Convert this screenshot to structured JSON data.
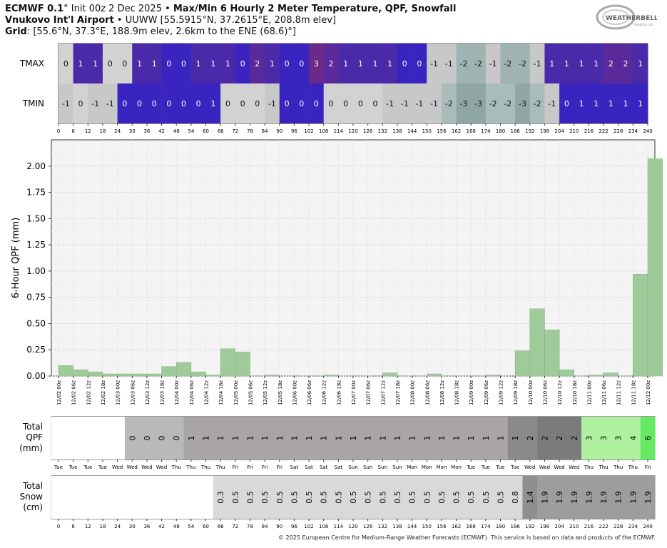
{
  "header": {
    "model": "ECMWF 0.1",
    "init_text": "° Init 00z 2 Dec 2025",
    "sep": " • ",
    "product": "Max/Min 6 Hourly 2 Meter Temperature, QPF, Snowfall",
    "station_name": "Vnukovo Int'l Airport",
    "station_info": " • UUWW [55.5915°N, 37.2615°E, 208.8m elev]",
    "grid_label": "Grid",
    "grid_info": ": [55.6°N, 37.3°E, 188.9m elev, 2.6km to the ENE (68.6)°]"
  },
  "logo": {
    "text": "WEATHERBELL",
    "sub": "Analytics LLC"
  },
  "footer": {
    "copyright": "© 2025 European Centre for Medium-Range Weather Forecasts (ECMWF). This service is based on data and products of the ECMWF."
  },
  "chart_data": [
    {
      "type": "heatmap",
      "rows": [
        "TMAX",
        "TMIN"
      ],
      "x": [
        0,
        6,
        12,
        18,
        24,
        30,
        36,
        42,
        48,
        54,
        60,
        66,
        72,
        78,
        84,
        90,
        96,
        102,
        108,
        114,
        120,
        126,
        132,
        138,
        144,
        150,
        156,
        162,
        168,
        174,
        180,
        186,
        192,
        198,
        204,
        210,
        216,
        222,
        228,
        234,
        240
      ],
      "tmax": [
        0,
        1,
        1,
        0,
        0,
        1,
        1,
        0,
        0,
        1,
        1,
        1,
        0,
        2,
        1,
        0,
        0,
        3,
        2,
        1,
        1,
        1,
        1,
        0,
        0,
        -1,
        -1,
        -2,
        -2,
        -1,
        -2,
        -2,
        -1,
        1,
        1,
        1,
        1,
        2,
        2,
        1
      ],
      "tmin": [
        -1,
        0,
        -1,
        -1,
        0,
        0,
        0,
        0,
        0,
        0,
        1,
        0,
        0,
        0,
        -1,
        0,
        0,
        0,
        0,
        0,
        0,
        0,
        -1,
        -1,
        -1,
        -1,
        -2,
        -3,
        -3,
        -2,
        -2,
        -3,
        -2,
        -1,
        0,
        1,
        1,
        1,
        1,
        1
      ]
    },
    {
      "type": "bar",
      "title": "",
      "xlabel": "",
      "ylabel": "6-Hour QPF (mm)",
      "ylim": [
        0,
        2.25
      ],
      "yticks": [
        "0.00",
        "0.25",
        "0.50",
        "0.75",
        "1.00",
        "1.25",
        "1.50",
        "1.75",
        "2.00"
      ],
      "categories": [
        "12/02 00z",
        "12/02 06z",
        "12/02 12z",
        "12/02 18z",
        "12/03 00z",
        "12/03 06z",
        "12/03 12z",
        "12/03 18z",
        "12/04 00z",
        "12/04 06z",
        "12/04 12z",
        "12/04 18z",
        "12/05 00z",
        "12/05 06z",
        "12/05 12z",
        "12/05 18z",
        "12/06 00z",
        "12/06 06z",
        "12/06 12z",
        "12/06 18z",
        "12/07 00z",
        "12/07 06z",
        "12/07 12z",
        "12/07 18z",
        "12/08 00z",
        "12/08 06z",
        "12/08 12z",
        "12/08 18z",
        "12/09 00z",
        "12/09 06z",
        "12/09 12z",
        "12/09 18z",
        "12/10 00z",
        "12/10 06z",
        "12/10 12z",
        "12/10 18z",
        "12/11 00z",
        "12/11 06z",
        "12/11 12z",
        "12/11 18z",
        "12/12 00z"
      ],
      "values": [
        0.1,
        0.06,
        0.04,
        0.02,
        0.02,
        0.02,
        0.02,
        0.09,
        0.13,
        0.04,
        0.01,
        0.26,
        0.23,
        0.0,
        0.01,
        0.0,
        0.0,
        0.0,
        0.01,
        0.0,
        0.0,
        0.0,
        0.03,
        0.0,
        0.0,
        0.02,
        0.0,
        0.0,
        0.0,
        0.01,
        0.0,
        0.24,
        0.64,
        0.44,
        0.06,
        0.0,
        0.01,
        0.03,
        0.0,
        0.97,
        2.07
      ]
    },
    {
      "type": "table",
      "title": "Total QPF (mm)",
      "days": [
        "Tue",
        "Tue",
        "Tue",
        "Tue",
        "Wed",
        "Wed",
        "Wed",
        "Wed",
        "Thu",
        "Thu",
        "Thu",
        "Thu",
        "Fri",
        "Fri",
        "Fri",
        "Fri",
        "Sat",
        "Sat",
        "Sat",
        "Sat",
        "Sun",
        "Sun",
        "Sun",
        "Sun",
        "Mon",
        "Mon",
        "Mon",
        "Mon",
        "Tue",
        "Tue",
        "Tue",
        "Tue",
        "Wed",
        "Wed",
        "Wed",
        "Wed",
        "Thu",
        "Thu",
        "Thu",
        "Thu",
        "Fri"
      ],
      "values": [
        "",
        "",
        "",
        "",
        "",
        "0",
        "0",
        "0",
        "0",
        "1",
        "1",
        "1",
        "1",
        "1",
        "1",
        "1",
        "1",
        "1",
        "1",
        "1",
        "1",
        "1",
        "1",
        "1",
        "1",
        "1",
        "1",
        "1",
        "1",
        "1",
        "1",
        "1",
        "2",
        "2",
        "2",
        "2",
        "3",
        "3",
        "3",
        "4",
        "6"
      ]
    },
    {
      "type": "table",
      "title": "Total Snow (cm)",
      "x": [
        0,
        6,
        12,
        18,
        24,
        30,
        36,
        42,
        48,
        54,
        60,
        66,
        72,
        78,
        84,
        90,
        96,
        102,
        108,
        114,
        120,
        126,
        132,
        138,
        144,
        150,
        156,
        162,
        168,
        174,
        180,
        186,
        192,
        198,
        204,
        210,
        216,
        222,
        228,
        234,
        240
      ],
      "values": [
        "",
        "",
        "",
        "",
        "",
        "",
        "",
        "",
        "",
        "",
        "",
        "0.3",
        "0.5",
        "0.5",
        "0.5",
        "0.5",
        "0.5",
        "0.5",
        "0.5",
        "0.5",
        "0.5",
        "0.5",
        "0.5",
        "0.5",
        "0.5",
        "0.5",
        "0.5",
        "0.5",
        "0.5",
        "0.5",
        "0.5",
        "0.8",
        "1.4",
        "1.9",
        "1.9",
        "1.9",
        "1.9",
        "1.9",
        "1.9",
        "1.9",
        "1.9"
      ]
    }
  ]
}
